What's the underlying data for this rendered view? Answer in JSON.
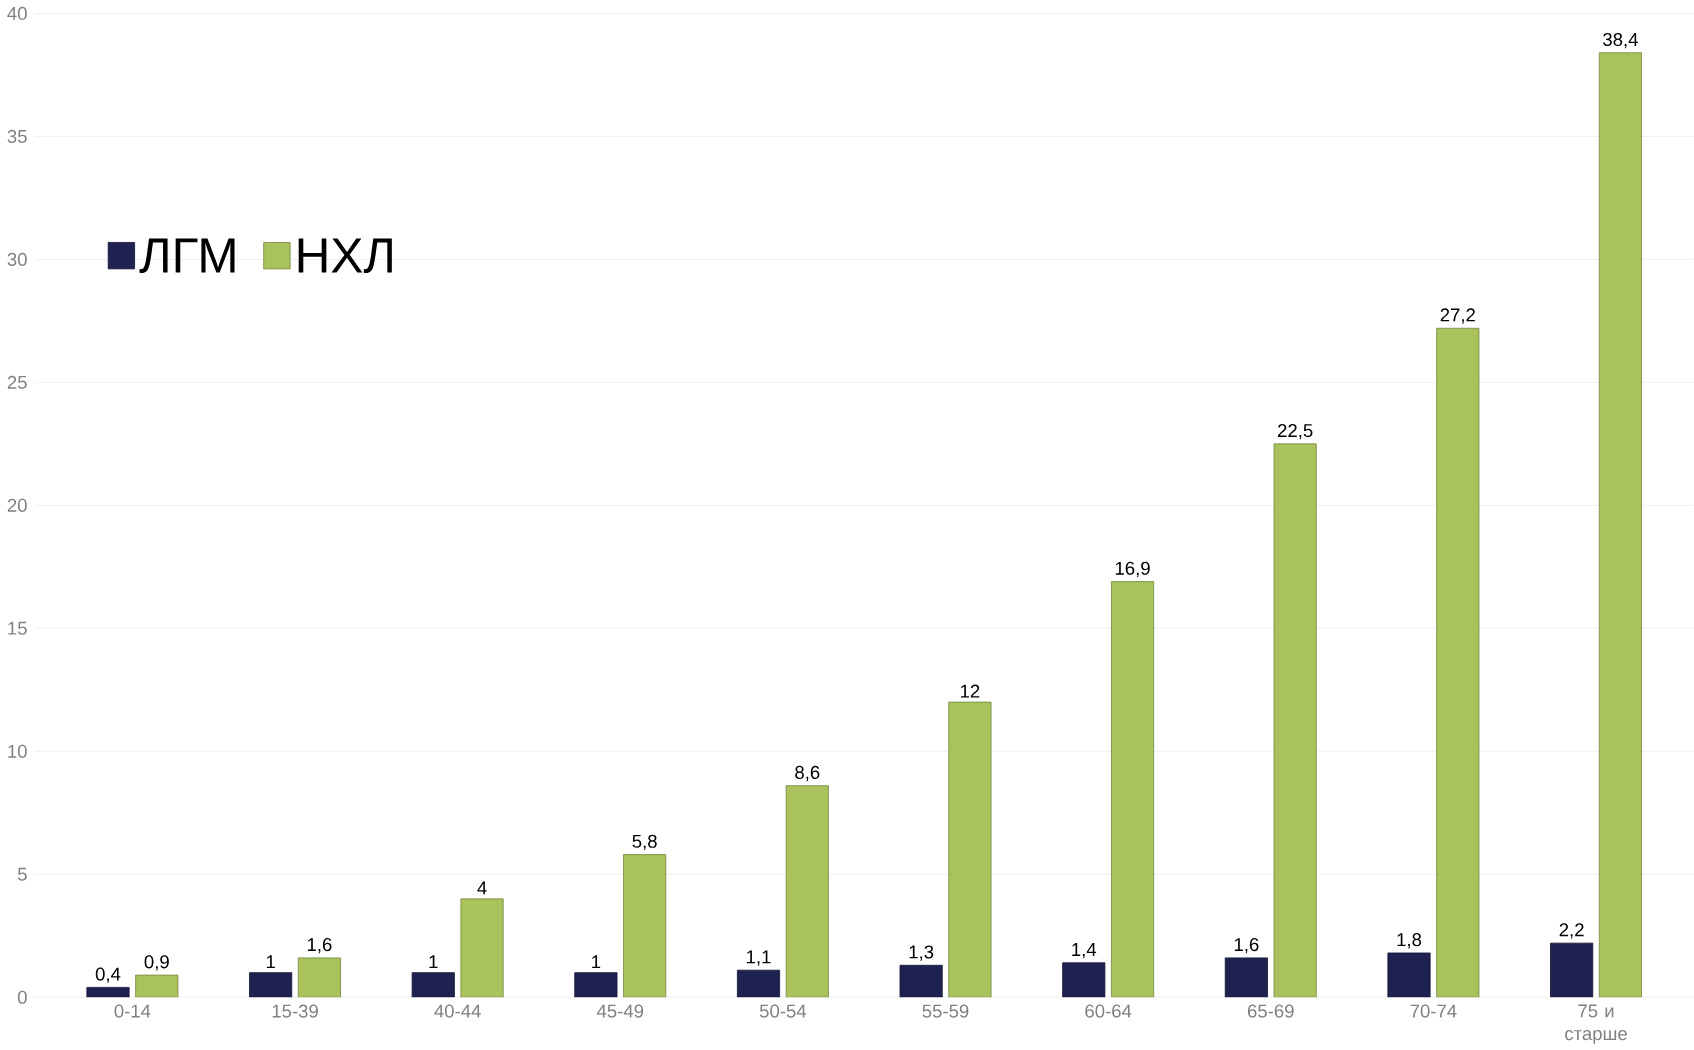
{
  "chart_data": {
    "type": "bar",
    "categories": [
      "0-14",
      "15-39",
      "40-44",
      "45-49",
      "50-54",
      "55-59",
      "60-64",
      "65-69",
      "70-74",
      "75 и старше"
    ],
    "series": [
      {
        "name": "ЛГМ",
        "color": "#1f2150",
        "values": [
          0.4,
          1,
          1,
          1,
          1.1,
          1.3,
          1.4,
          1.6,
          1.8,
          2.2
        ],
        "value_labels": [
          "0,4",
          "1",
          "1",
          "1",
          "1,1",
          "1,3",
          "1,4",
          "1,6",
          "1,8",
          "2,2"
        ]
      },
      {
        "name": "НХЛ",
        "color": "#a9c25c",
        "values": [
          0.9,
          1.6,
          4,
          5.8,
          8.6,
          12,
          16.9,
          22.5,
          27.2,
          38.4
        ],
        "value_labels": [
          "0,9",
          "1,6",
          "4",
          "5,8",
          "8,6",
          "12",
          "16,9",
          "22,5",
          "27,2",
          "38,4"
        ]
      }
    ],
    "ylim": [
      0,
      40
    ],
    "yticks": [
      0,
      5,
      10,
      15,
      20,
      25,
      30,
      35,
      40
    ],
    "grid": "y",
    "legend": "top left"
  }
}
